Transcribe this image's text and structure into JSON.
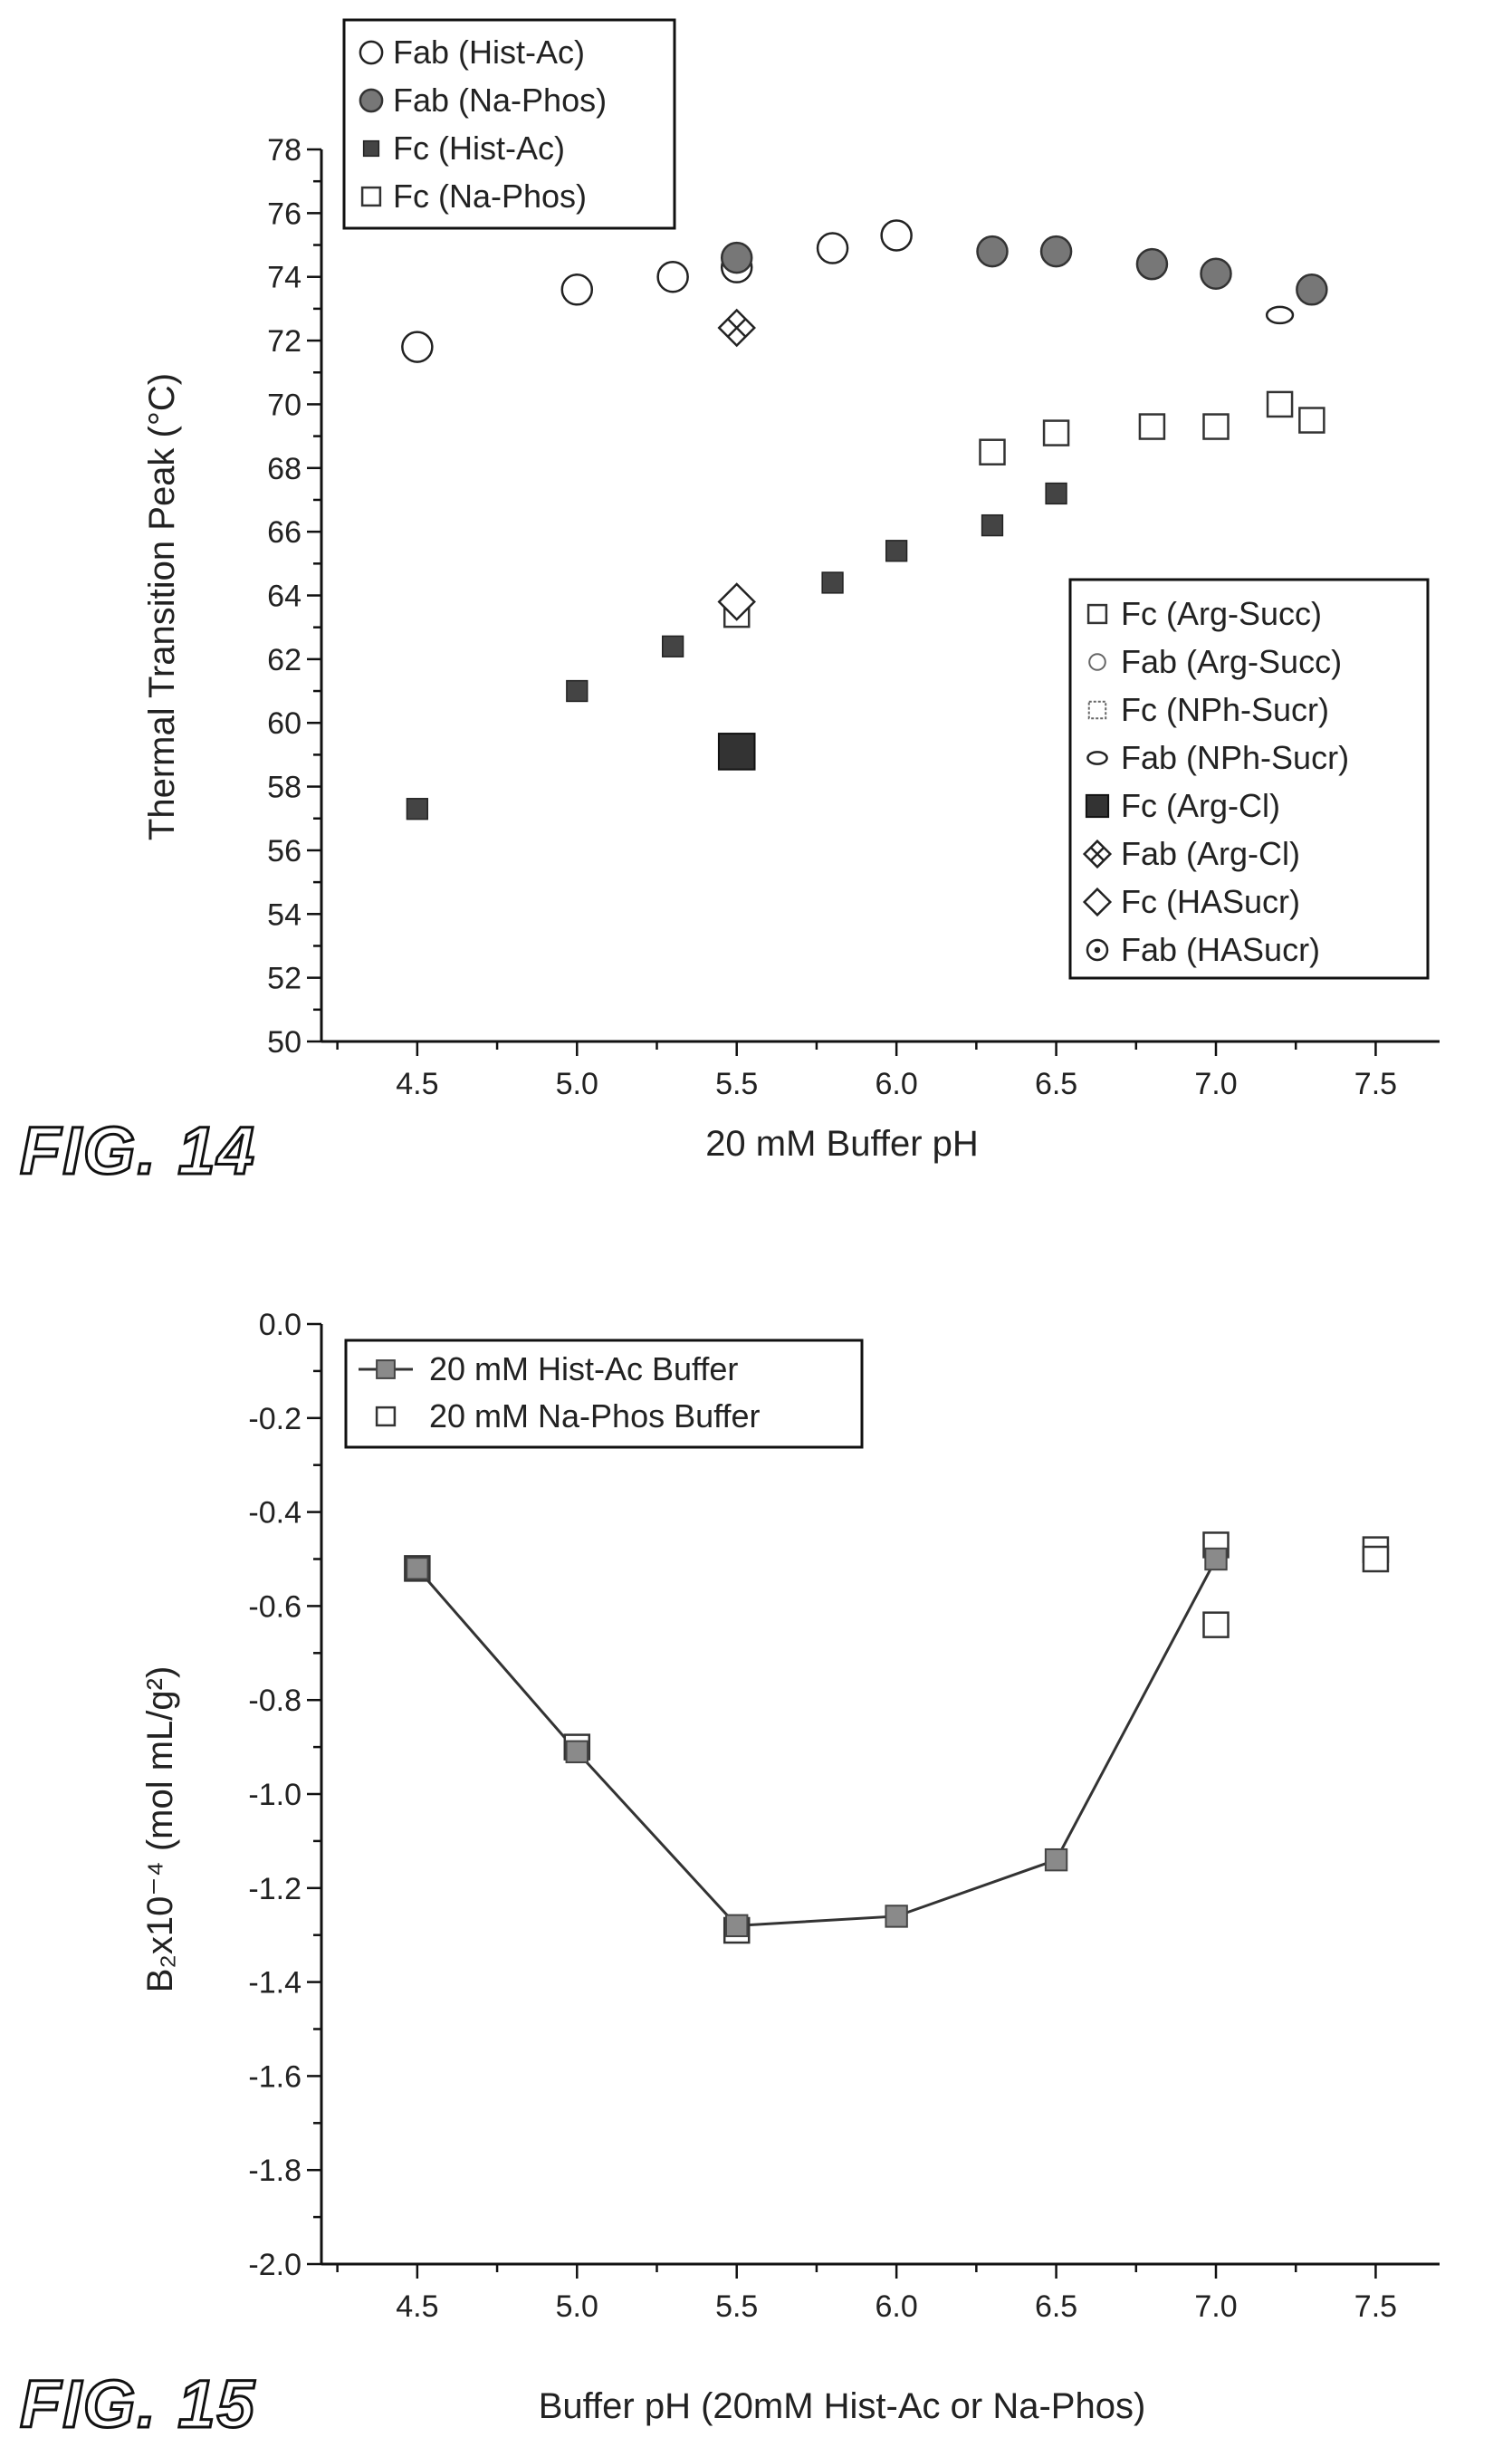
{
  "figures": [
    {
      "label": "FIG. 14",
      "chart_data": {
        "type": "scatter",
        "xlabel": "20 mM Buffer pH",
        "ylabel": "Thermal Transition Peak (°C)",
        "xlim": [
          4.2,
          7.7
        ],
        "ylim": [
          50,
          78
        ],
        "xticks": [
          "4.5",
          "5.0",
          "5.5",
          "6.0",
          "6.5",
          "7.0",
          "7.5"
        ],
        "yticks": [
          "50",
          "52",
          "54",
          "56",
          "58",
          "60",
          "62",
          "64",
          "66",
          "68",
          "70",
          "72",
          "74",
          "76",
          "78"
        ],
        "legends": [
          {
            "placement": "top-left",
            "entries": [
              "Fab (Hist-Ac)",
              "Fab (Na-Phos)",
              "Fc (Hist-Ac)",
              "Fc (Na-Phos)"
            ]
          },
          {
            "placement": "bottom-right",
            "entries": [
              "Fc (Arg-Succ)",
              "Fab (Arg-Succ)",
              "Fc (NPh-Sucr)",
              "Fab (NPh-Sucr)",
              "Fc (Arg-Cl)",
              "Fab (Arg-Cl)",
              "Fc (HASucr)",
              "Fab (HASucr)"
            ]
          }
        ],
        "series": [
          {
            "name": "Fab (Hist-Ac)",
            "marker": "circle-open",
            "x": [
              4.5,
              5.0,
              5.3,
              5.5,
              5.8,
              6.0
            ],
            "y": [
              71.8,
              73.6,
              74.0,
              74.3,
              74.9,
              75.3
            ]
          },
          {
            "name": "Fab (Na-Phos)",
            "marker": "circle-filled",
            "x": [
              5.5,
              6.3,
              6.5,
              6.8,
              7.0,
              7.3
            ],
            "y": [
              74.6,
              74.8,
              74.8,
              74.4,
              74.1,
              73.6
            ]
          },
          {
            "name": "Fc (Hist-Ac)",
            "marker": "square-filled-small",
            "x": [
              4.5,
              5.0,
              5.3,
              5.8,
              6.0,
              6.3,
              6.5
            ],
            "y": [
              57.3,
              61.0,
              62.4,
              64.4,
              65.4,
              66.2,
              67.2
            ]
          },
          {
            "name": "Fc (Na-Phos)",
            "marker": "square-open",
            "x": [
              5.5,
              6.3,
              6.5,
              6.8,
              7.0,
              7.3
            ],
            "y": [
              63.4,
              68.5,
              69.1,
              69.3,
              69.3,
              69.5
            ]
          },
          {
            "name": "Fc (Arg-Succ)",
            "marker": "square-open",
            "x": [
              7.2
            ],
            "y": [
              70.0
            ]
          },
          {
            "name": "Fab (NPh-Sucr)",
            "marker": "ellipse-open",
            "x": [
              7.2
            ],
            "y": [
              72.8
            ]
          },
          {
            "name": "Fc (Arg-Cl)",
            "marker": "square-filled-large",
            "x": [
              5.5
            ],
            "y": [
              59.1
            ]
          },
          {
            "name": "Fab (Arg-Cl)",
            "marker": "diamond-cross",
            "x": [
              5.5
            ],
            "y": [
              72.4
            ]
          },
          {
            "name": "Fc (HASucr)",
            "marker": "diamond-open",
            "x": [
              5.5
            ],
            "y": [
              63.8
            ]
          }
        ]
      }
    },
    {
      "label": "FIG. 15",
      "chart_data": {
        "type": "line",
        "xlabel": "Buffer pH (20mM Hist-Ac or Na-Phos)",
        "ylabel": "B₂x10⁻⁴ (mol mL/g²)",
        "xlim": [
          4.2,
          7.7
        ],
        "ylim": [
          -2.0,
          0.0
        ],
        "xticks": [
          "4.5",
          "5.0",
          "5.5",
          "6.0",
          "6.5",
          "7.0",
          "7.5"
        ],
        "yticks": [
          "0.0",
          "-0.2",
          "-0.4",
          "-0.6",
          "-0.8",
          "-1.0",
          "-1.2",
          "-1.4",
          "-1.6",
          "-1.8",
          "-2.0"
        ],
        "legends": [
          {
            "placement": "top-left",
            "entries": [
              "20 mM Hist-Ac Buffer",
              "20 mM Na-Phos Buffer"
            ]
          }
        ],
        "series": [
          {
            "name": "20 mM Hist-Ac Buffer",
            "marker": "square-filled-line",
            "x": [
              4.5,
              5.0,
              5.5,
              6.0,
              6.5,
              7.0
            ],
            "y": [
              -0.52,
              -0.91,
              -1.28,
              -1.26,
              -1.14,
              -0.5
            ]
          },
          {
            "name": "20 mM Na-Phos Buffer",
            "marker": "square-open",
            "x": [
              4.5,
              5.0,
              5.5,
              7.0,
              7.0,
              7.5,
              7.5
            ],
            "y": [
              -0.52,
              -0.9,
              -1.29,
              -0.47,
              -0.64,
              -0.48,
              -0.5
            ]
          }
        ]
      }
    }
  ]
}
